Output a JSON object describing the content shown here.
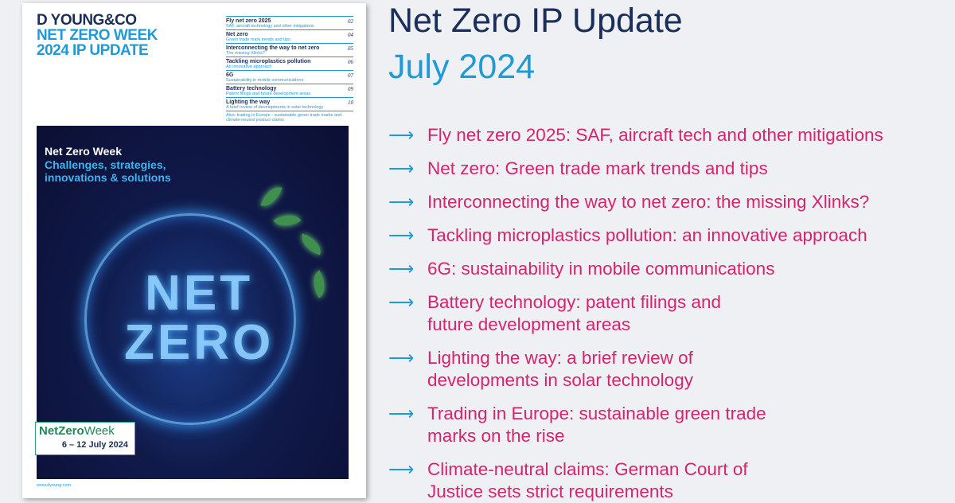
{
  "cover": {
    "brand": [
      "D YOUNG&CO",
      "NET ZERO WEEK",
      "2024 IP UPDATE"
    ],
    "toc": [
      {
        "title": "Fly net zero 2025",
        "subtitle": "SAF, aircraft technology and other mitigations",
        "page": "02"
      },
      {
        "title": "Net zero",
        "subtitle": "Green trade mark trends and tips",
        "page": "04"
      },
      {
        "title": "Interconnecting the way to net zero",
        "subtitle": "The missing Xlinks?",
        "page": "05"
      },
      {
        "title": "Tackling microplastics pollution",
        "subtitle": "An innovative approach",
        "page": "06"
      },
      {
        "title": "6G",
        "subtitle": "Sustainability in mobile communications",
        "page": "07"
      },
      {
        "title": "Battery technology",
        "subtitle": "Patent filings and future development areas",
        "page": "09"
      },
      {
        "title": "Lighting the way",
        "subtitle": "A brief review of developments in solar technology",
        "page": "10"
      }
    ],
    "toc_also": "Also: trading in Europe - sustainable green trade marks and climate-neutral product claims",
    "art_heading": "Net Zero Week",
    "art_subheading": "Challenges, strategies, innovations & solutions",
    "art_word1": "NET",
    "art_word2": "ZERO",
    "badge_net": "NetZero",
    "badge_week": "Week",
    "badge_dates": "6 – 12 July 2024",
    "url": "www.dyoung.com"
  },
  "title": "Net Zero IP Update",
  "subtitle": "July 2024",
  "arrow": "⟶",
  "items": [
    "Fly net zero 2025: SAF, aircraft tech and other mitigations",
    "Net zero: Green trade mark trends and tips",
    "Interconnecting the way to net zero: the missing Xlinks?",
    "Tackling microplastics pollution: an innovative approach",
    "6G: sustainability in mobile communications",
    "Battery technology: patent filings and future development areas",
    "Lighting the way: a brief review of developments in solar technology",
    "Trading in Europe: sustainable green trade marks on the rise",
    "Climate-neutral claims: German Court of Justice sets strict requirements"
  ],
  "colors": {
    "navy": "#1a2e5a",
    "blue": "#1e9ad6",
    "magenta": "#d6246e",
    "green": "#1a8a5a"
  }
}
